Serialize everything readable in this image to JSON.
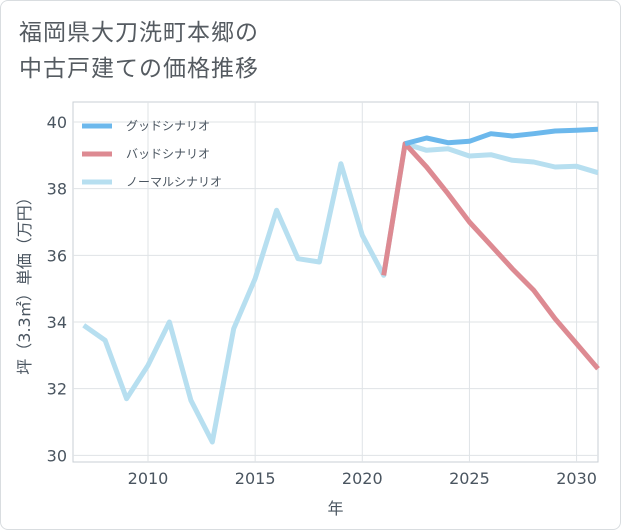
{
  "title_lines": [
    "福岡県大刀洗町本郷の",
    "中古戸建ての価格推移"
  ],
  "chart_data": {
    "type": "line",
    "xlabel": "年",
    "ylabel": "坪（3.3㎡）単価（万円）",
    "xlim": [
      2006.5,
      2031
    ],
    "ylim": [
      29.8,
      40.6
    ],
    "xticks": [
      2010,
      2015,
      2020,
      2025,
      2030
    ],
    "yticks": [
      30,
      32,
      34,
      36,
      38,
      40
    ],
    "grid": true,
    "legend_position": "top-left",
    "series": [
      {
        "name": "グッドシナリオ",
        "color": "#6cb8ec",
        "x": [
          2022,
          2023,
          2024,
          2025,
          2026,
          2027,
          2028,
          2029,
          2030,
          2031
        ],
        "y": [
          39.35,
          39.52,
          39.38,
          39.42,
          39.65,
          39.58,
          39.65,
          39.73,
          39.75,
          39.78
        ]
      },
      {
        "name": "バッドシナリオ",
        "color": "#dd8a92",
        "x": [
          2021,
          2022,
          2023,
          2024,
          2025,
          2026,
          2027,
          2028,
          2029,
          2030,
          2031
        ],
        "y": [
          35.4,
          39.35,
          38.65,
          37.85,
          37.0,
          36.3,
          35.6,
          34.95,
          34.1,
          33.35,
          32.6
        ]
      },
      {
        "name": "ノーマルシナリオ",
        "color": "#b7dff0",
        "x": [
          2007,
          2008,
          2009,
          2010,
          2011,
          2012,
          2013,
          2014,
          2015,
          2016,
          2017,
          2018,
          2019,
          2020,
          2021,
          2022,
          2023,
          2024,
          2025,
          2026,
          2027,
          2028,
          2029,
          2030,
          2031
        ],
        "y": [
          33.9,
          33.45,
          31.7,
          32.7,
          34.0,
          31.65,
          30.4,
          33.8,
          35.3,
          37.35,
          35.9,
          35.8,
          38.75,
          36.6,
          35.4,
          39.35,
          39.15,
          39.2,
          38.98,
          39.02,
          38.85,
          38.8,
          38.65,
          38.67,
          38.48
        ]
      }
    ]
  }
}
